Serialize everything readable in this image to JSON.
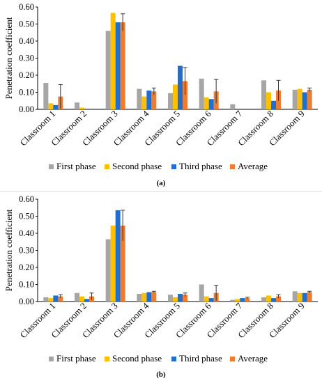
{
  "legend": {
    "entries": [
      "First phase",
      "Second phase",
      "Third phase",
      "Average"
    ]
  },
  "colors": {
    "First phase": "#a6a6a6",
    "Second phase": "#ffc000",
    "Third phase": "#1f6fd1",
    "Average": "#ed7d31"
  },
  "chart_data": [
    {
      "type": "bar",
      "label": "(a)",
      "ylabel": "Penetration coefficient",
      "ylim": [
        0,
        0.6
      ],
      "yticks": [
        "0.00",
        "0.10",
        "0.20",
        "0.30",
        "0.40",
        "0.50",
        "0.60"
      ],
      "categories": [
        "Classroom 1",
        "Classroom 2",
        "Classroom 3",
        "Classroom 4",
        "Classroom 5",
        "Classroom 6",
        "Classroom 7",
        "Classroom 8",
        "Classroom 9"
      ],
      "series": [
        {
          "name": "First phase",
          "values": [
            0.155,
            0.04,
            0.46,
            0.12,
            0.095,
            0.18,
            0.03,
            0.17,
            0.115
          ]
        },
        {
          "name": "Second phase",
          "values": [
            0.035,
            0.01,
            0.565,
            0.075,
            0.145,
            0.07,
            0.0,
            0.1,
            0.12
          ]
        },
        {
          "name": "Third phase",
          "values": [
            0.025,
            0.0,
            0.51,
            0.11,
            0.255,
            0.06,
            0.0,
            0.05,
            0.1
          ]
        },
        {
          "name": "Average",
          "values": [
            0.075,
            0.0,
            0.51,
            0.105,
            0.165,
            0.105,
            0.0,
            0.11,
            0.115
          ]
        }
      ],
      "error": [
        0.07,
        0.0,
        0.05,
        0.02,
        0.08,
        0.07,
        0.0,
        0.06,
        0.01
      ],
      "legend_position": "bottom",
      "grid": false
    },
    {
      "type": "bar",
      "label": "(b)",
      "ylabel": "Penetration coefficient",
      "ylim": [
        0,
        0.6
      ],
      "yticks": [
        "0.00",
        "0.10",
        "0.20",
        "0.30",
        "0.40",
        "0.50",
        "0.60"
      ],
      "categories": [
        "Classroom 1",
        "Classroom 2",
        "Classroom 3",
        "Classroom 4",
        "Classroom 5",
        "Classroom 6",
        "Classroom 7",
        "Classroom 8",
        "Classroom 9"
      ],
      "series": [
        {
          "name": "First phase",
          "values": [
            0.025,
            0.05,
            0.365,
            0.045,
            0.04,
            0.1,
            0.01,
            0.025,
            0.06
          ]
        },
        {
          "name": "Second phase",
          "values": [
            0.02,
            0.03,
            0.445,
            0.05,
            0.025,
            0.03,
            0.015,
            0.035,
            0.05
          ]
        },
        {
          "name": "Third phase",
          "values": [
            0.035,
            0.015,
            0.535,
            0.055,
            0.045,
            0.02,
            0.02,
            0.02,
            0.05
          ]
        },
        {
          "name": "Average",
          "values": [
            0.03,
            0.03,
            0.445,
            0.055,
            0.04,
            0.05,
            0.02,
            0.03,
            0.055
          ]
        }
      ],
      "error": [
        0.01,
        0.02,
        0.09,
        0.005,
        0.01,
        0.045,
        0.005,
        0.01,
        0.005
      ],
      "legend_position": "bottom",
      "grid": false
    }
  ]
}
